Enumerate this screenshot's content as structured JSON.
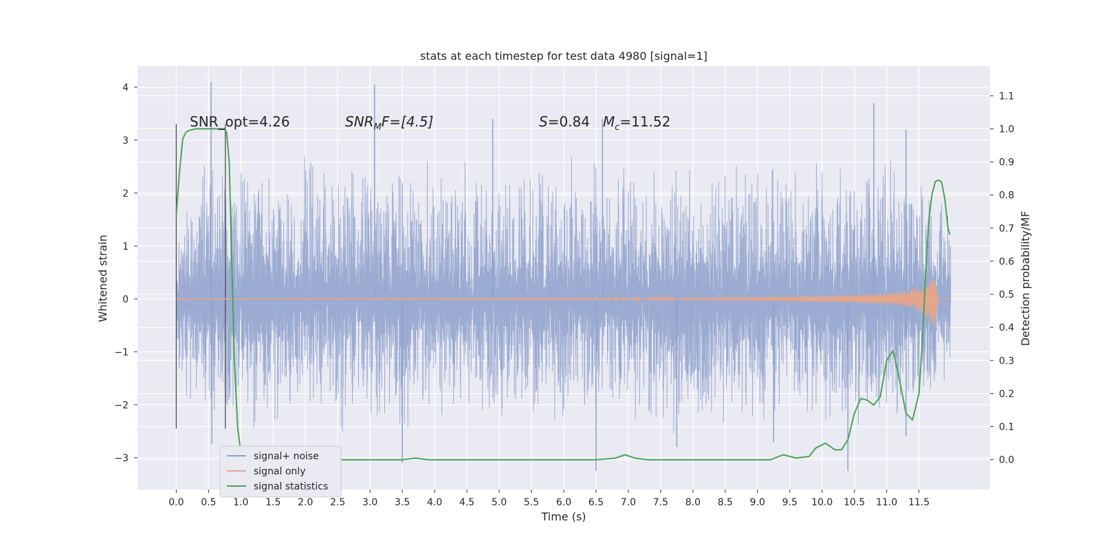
{
  "chart_data": {
    "type": "line",
    "title": "stats at each timestep for test data 4980 [signal=1]",
    "xlabel": "Time (s)",
    "ylabel_left": "Whitened strain",
    "ylabel_right": "Detection probability/MF",
    "xlim": [
      -0.6,
      12.6
    ],
    "ylim_left": [
      -3.6,
      4.4
    ],
    "ylim_right": [
      -0.09,
      1.19
    ],
    "x_ticks": [
      0.0,
      0.5,
      1.0,
      1.5,
      2.0,
      2.5,
      3.0,
      3.5,
      4.0,
      4.5,
      5.0,
      5.5,
      6.0,
      6.5,
      7.0,
      7.5,
      8.0,
      8.5,
      9.0,
      9.5,
      10.0,
      10.5,
      11.0,
      11.5
    ],
    "x_tick_labels": [
      "0.0",
      "0.5",
      "1.0",
      "1.5",
      "2.0",
      "2.5",
      "3.0",
      "3.5",
      "4.0",
      "4.5",
      "5.0",
      "5.5",
      "6.0",
      "6.5",
      "7.0",
      "7.5",
      "8.0",
      "8.5",
      "9.0",
      "9.5",
      "10.0",
      "10.5",
      "11.0",
      "11.5"
    ],
    "y_left_ticks": [
      -3,
      -2,
      -1,
      0,
      1,
      2,
      3,
      4
    ],
    "y_left_tick_labels": [
      "−3",
      "−2",
      "−1",
      "0",
      "1",
      "2",
      "3",
      "4"
    ],
    "y_right_ticks": [
      0.0,
      0.1,
      0.2,
      0.3,
      0.4,
      0.5,
      0.6,
      0.7,
      0.8,
      0.9,
      1.0,
      1.1
    ],
    "y_right_tick_labels": [
      "0.0",
      "0.1",
      "0.2",
      "0.3",
      "0.4",
      "0.5",
      "0.6",
      "0.7",
      "0.8",
      "0.9",
      "1.0",
      "1.1"
    ],
    "grid": true,
    "legend_placement": "lower-left",
    "annotations": {
      "snr_opt": "SNR_opt=4.26",
      "snr_mf_main": "SNR",
      "snr_mf_sub": "M",
      "snr_mf_rest": "F=[4.5]",
      "s_main": "S",
      "s_rest": "=0.84",
      "mc_main": "M",
      "mc_sub": "c",
      "mc_rest": "=11.52"
    },
    "markers": {
      "vertical_lines_x": [
        0.0,
        0.76
      ],
      "vertical_lines_range": [
        -2.45,
        3.3
      ]
    },
    "series": [
      {
        "name": "signal+ noise",
        "color": "#8da0cb",
        "axis": "left",
        "x_range": [
          0.0,
          11.99
        ],
        "envelope_upper": [
          1.3,
          2.9,
          2.6,
          2.6,
          2.7,
          2.5,
          2.6,
          2.8,
          2.7,
          2.6,
          2.5,
          2.6,
          2.7,
          2.8,
          2.6,
          2.5,
          2.7,
          2.6,
          2.8,
          2.6,
          2.7,
          2.6,
          2.8,
          2.5,
          2.7
        ],
        "envelope_lower": [
          -1.6,
          -2.5,
          -2.4,
          -2.5,
          -2.4,
          -2.6,
          -2.5,
          -2.7,
          -2.4,
          -2.5,
          -2.3,
          -2.4,
          -2.6,
          -2.5,
          -2.4,
          -2.6,
          -2.5,
          -2.5,
          -2.6,
          -2.4,
          -2.5,
          -2.6,
          -2.6,
          -2.5,
          -1.8
        ],
        "spikes": [
          [
            0.54,
            4.1
          ],
          [
            3.07,
            4.05
          ],
          [
            4.9,
            3.4
          ],
          [
            6.6,
            3.4
          ],
          [
            10.8,
            3.7
          ],
          [
            11.3,
            3.2
          ],
          [
            3.5,
            -3.1
          ],
          [
            6.5,
            -3.25
          ],
          [
            10.4,
            -3.25
          ],
          [
            0.55,
            -2.75
          ],
          [
            7.75,
            -2.8
          ],
          [
            9.25,
            -2.7
          ],
          [
            11.3,
            -2.6
          ]
        ]
      },
      {
        "name": "signal only",
        "color": "#e5a68a",
        "axis": "left",
        "x": [
          0.0,
          4.0,
          6.0,
          7.5,
          8.5,
          9.5,
          10.0,
          10.5,
          11.0,
          11.3,
          11.5,
          11.65,
          11.75,
          11.8,
          11.99
        ],
        "amplitude": [
          0.01,
          0.01,
          0.012,
          0.015,
          0.03,
          0.05,
          0.06,
          0.08,
          0.11,
          0.15,
          0.22,
          0.35,
          0.55,
          0.0,
          0.0
        ]
      },
      {
        "name": "signal statistics",
        "color": "#4aa25a",
        "axis": "right",
        "x": [
          0.0,
          0.05,
          0.1,
          0.15,
          0.2,
          0.3,
          0.4,
          0.5,
          0.6,
          0.7,
          0.74,
          0.78,
          0.82,
          0.86,
          0.9,
          0.95,
          1.0,
          1.1,
          1.5,
          2.0,
          3.0,
          3.5,
          3.7,
          3.9,
          4.5,
          5.5,
          6.5,
          6.8,
          6.95,
          7.1,
          7.3,
          8.0,
          8.8,
          9.0,
          9.2,
          9.4,
          9.6,
          9.8,
          9.9,
          10.05,
          10.2,
          10.3,
          10.4,
          10.5,
          10.6,
          10.7,
          10.8,
          10.9,
          11.0,
          11.1,
          11.2,
          11.3,
          11.4,
          11.5,
          11.55,
          11.6,
          11.65,
          11.7,
          11.75,
          11.8,
          11.85,
          11.9,
          11.95,
          11.98
        ],
        "y": [
          0.74,
          0.87,
          0.97,
          0.99,
          0.995,
          1.0,
          1.0,
          1.0,
          1.0,
          1.0,
          1.0,
          0.99,
          0.9,
          0.6,
          0.3,
          0.1,
          0.02,
          0.0,
          0.0,
          0.0,
          0.0,
          0.0,
          0.005,
          0.0,
          0.0,
          0.0,
          0.0,
          0.005,
          0.015,
          0.005,
          0.0,
          0.0,
          0.0,
          0.0,
          0.0,
          0.015,
          0.005,
          0.01,
          0.035,
          0.05,
          0.03,
          0.03,
          0.06,
          0.14,
          0.185,
          0.18,
          0.165,
          0.19,
          0.3,
          0.33,
          0.24,
          0.14,
          0.12,
          0.2,
          0.35,
          0.55,
          0.72,
          0.8,
          0.84,
          0.845,
          0.84,
          0.79,
          0.7,
          0.68
        ]
      }
    ]
  }
}
